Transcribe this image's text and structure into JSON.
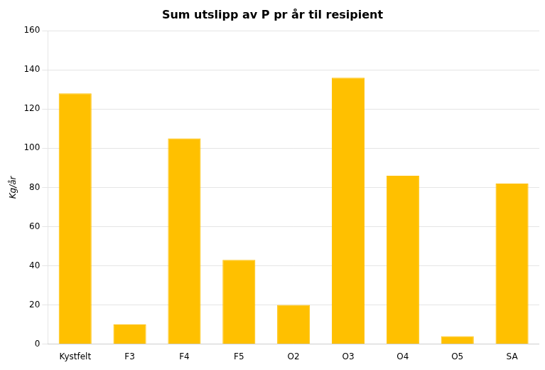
{
  "chart_data": {
    "type": "bar",
    "title": "Sum utslipp av P pr år til resipient",
    "categories": [
      "Kystfelt",
      "F3",
      "F4",
      "F5",
      "O2",
      "O3",
      "O4",
      "O5",
      "SA"
    ],
    "values": [
      128,
      10,
      105,
      43,
      20,
      136,
      86,
      4,
      82
    ],
    "color": "#FFC000",
    "ylabel": "Kg/år",
    "ylim": [
      0,
      160
    ],
    "yticks": [
      0,
      20,
      40,
      60,
      80,
      100,
      120,
      140,
      160
    ],
    "grid": true
  }
}
